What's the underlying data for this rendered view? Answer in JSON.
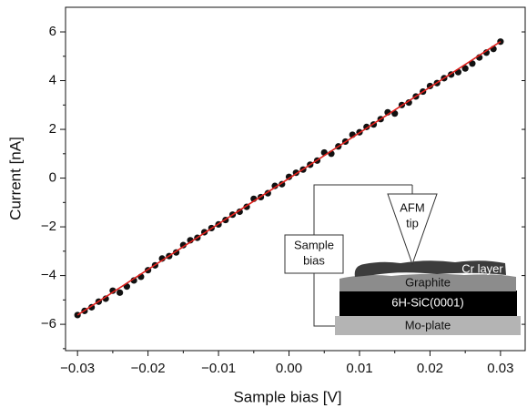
{
  "chart_data": {
    "type": "scatter",
    "xlabel": "Sample bias [V]",
    "ylabel": "Current [nA]",
    "xlim": [
      -0.0317,
      0.0335
    ],
    "ylim": [
      -7.08,
      7.01
    ],
    "xticks": [
      {
        "value": -0.03,
        "label": "−0.03"
      },
      {
        "value": -0.02,
        "label": "−0.02"
      },
      {
        "value": -0.01,
        "label": "−0.01"
      },
      {
        "value": 0,
        "label": "0.00"
      },
      {
        "value": 0.01,
        "label": "0.01"
      },
      {
        "value": 0.02,
        "label": "0.02"
      },
      {
        "value": 0.03,
        "label": "0.03"
      }
    ],
    "yticks": [
      {
        "value": -6,
        "label": "−6"
      },
      {
        "value": -4,
        "label": "−4"
      },
      {
        "value": -2,
        "label": "−2"
      },
      0,
      2,
      4,
      6
    ],
    "xminorticks": [
      -0.025,
      -0.015,
      -0.005,
      0.005,
      0.015,
      0.025
    ],
    "yminorticks": [
      -7,
      -5,
      -3,
      -1,
      1,
      3,
      5
    ],
    "color": "#111111",
    "x": [
      -0.03,
      -0.029,
      -0.028,
      -0.027,
      -0.026,
      -0.025,
      -0.024,
      -0.023,
      -0.022,
      -0.021,
      -0.02,
      -0.019,
      -0.018,
      -0.017,
      -0.016,
      -0.015,
      -0.014,
      -0.013,
      -0.012,
      -0.011,
      -0.01,
      -0.009,
      -0.008,
      -0.007,
      -0.006,
      -0.005,
      -0.004,
      -0.003,
      -0.002,
      -0.001,
      0.0,
      0.001,
      0.002,
      0.003,
      0.004,
      0.005,
      0.006,
      0.007,
      0.008,
      0.009,
      0.01,
      0.011,
      0.012,
      0.013,
      0.014,
      0.015,
      0.016,
      0.017,
      0.018,
      0.019,
      0.02,
      0.021,
      0.022,
      0.023,
      0.024,
      0.025,
      0.026,
      0.027,
      0.028,
      0.029,
      0.03
    ],
    "values": [
      -5.62,
      -5.45,
      -5.3,
      -5.07,
      -4.95,
      -4.62,
      -4.7,
      -4.45,
      -4.2,
      -4.05,
      -3.78,
      -3.58,
      -3.3,
      -3.2,
      -3.05,
      -2.75,
      -2.55,
      -2.45,
      -2.22,
      -2.05,
      -1.9,
      -1.72,
      -1.5,
      -1.38,
      -1.18,
      -0.85,
      -0.78,
      -0.62,
      -0.32,
      -0.25,
      0.05,
      0.22,
      0.35,
      0.55,
      0.72,
      1.05,
      1.0,
      1.3,
      1.5,
      1.78,
      1.88,
      2.1,
      2.2,
      2.42,
      2.7,
      2.65,
      3.0,
      3.1,
      3.35,
      3.55,
      3.78,
      3.9,
      4.1,
      4.25,
      4.35,
      4.5,
      4.7,
      4.95,
      5.15,
      5.3,
      5.6
    ],
    "fit": {
      "x": [
        -0.03,
        0.03
      ],
      "values": [
        -5.62,
        5.6
      ],
      "color": "#e0201c"
    },
    "inset": {
      "tip": [
        "AFM",
        "tip"
      ],
      "bias": [
        "Sample",
        "bias"
      ],
      "cr": "Cr layer",
      "graphite": "Graphite",
      "sic": "6H-SiC(0001)",
      "mo": "Mo-plate"
    }
  }
}
